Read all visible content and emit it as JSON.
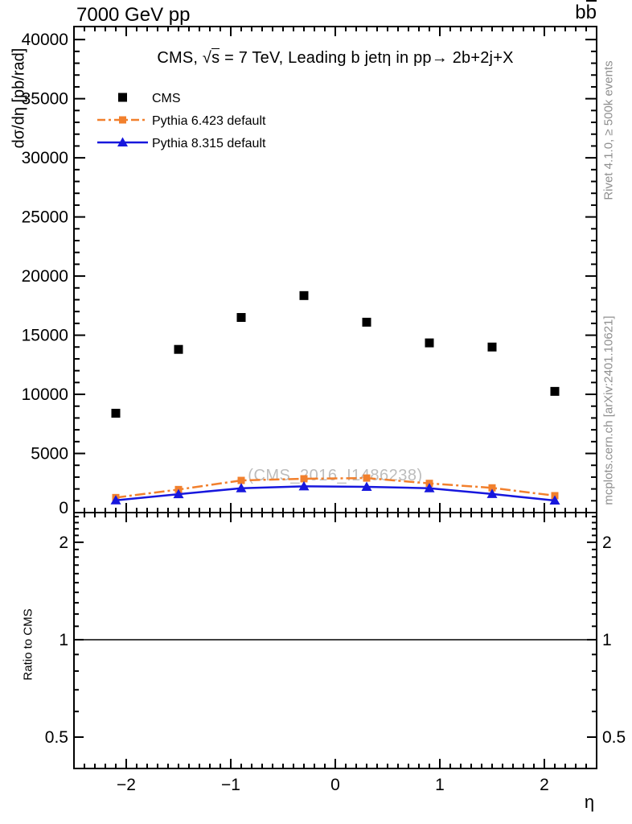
{
  "header": {
    "beam_energy_label": "7000 GeV pp",
    "process_quark": "b",
    "process_antiquark": "b"
  },
  "title": {
    "pre": "CMS, ",
    "sqrt_symbol": "√",
    "sqrt_arg": "s",
    "post": " = 7 TeV, Leading b jetη in pp→ 2b+2j+X"
  },
  "axes": {
    "ylabel": "dσ/dη [pb/rad]",
    "xlabel": "η",
    "ratio_ylabel": "Ratio to CMS"
  },
  "credits": {
    "generator": "Rivet 4.1.0, ≥ 500k events",
    "site": "mcplots.cern.ch [arXiv:2401.10621]"
  },
  "watermark": "(CMS_2016_I1486238)",
  "colors": {
    "cms": "#000000",
    "pythia6": "#f2802d",
    "pythia8": "#1717dd",
    "credits_gray": "#8f8f8f",
    "watermark_gray": "#bdbdbd"
  },
  "legend": [
    {
      "label": "CMS",
      "color": "#000000",
      "marker": "square",
      "line": "none"
    },
    {
      "label": "Pythia 6.423 default",
      "color": "#f2802d",
      "marker": "square",
      "line": "dashdot"
    },
    {
      "label": "Pythia 8.315 default",
      "color": "#1717dd",
      "marker": "triangle-up",
      "line": "solid"
    }
  ],
  "chart_data": {
    "type": "scatter",
    "title": "CMS, √s = 7 TeV, Leading b jet η in pp → 2b+2j+X",
    "xlabel": "η",
    "ylabel": "dσ/dη [pb/rad]",
    "xlim": [
      -2.5,
      2.5
    ],
    "ylim": [
      0,
      41100
    ],
    "x": [
      -2.1,
      -1.5,
      -0.9,
      -0.3,
      0.3,
      0.9,
      1.5,
      2.1
    ],
    "series": [
      {
        "name": "CMS",
        "color": "#000000",
        "marker": "square",
        "line": "none",
        "values": [
          8400,
          13800,
          16500,
          18350,
          16100,
          14350,
          14000,
          10250
        ]
      },
      {
        "name": "Pythia 6.423 default",
        "color": "#f2802d",
        "marker": "square",
        "line": "dashdot",
        "values": [
          1270,
          1950,
          2720,
          2860,
          2920,
          2470,
          2090,
          1430
        ]
      },
      {
        "name": "Pythia 8.315 default",
        "color": "#1717dd",
        "marker": "triangle-up",
        "line": "solid",
        "values": [
          1040,
          1560,
          2060,
          2220,
          2180,
          2060,
          1570,
          1020
        ]
      }
    ],
    "y_major_ticks": [
      0,
      5000,
      10000,
      15000,
      20000,
      25000,
      30000,
      35000,
      40000
    ],
    "y_minor_step": 1000,
    "x_major_ticks": [
      -2,
      -1,
      0,
      1,
      2
    ],
    "x_minor_step": 0.1,
    "ratio_panel": {
      "label": "Ratio to CMS",
      "scale": "log",
      "ylim": [
        0.4,
        2.47
      ],
      "major_ticks": [
        0.5,
        1,
        2
      ],
      "minor_tick_range": [
        0.4,
        2.4
      ],
      "minor_tick_step": 0.1,
      "reference_line": 1
    },
    "grid": false,
    "legend_position": "top-left-inside"
  }
}
